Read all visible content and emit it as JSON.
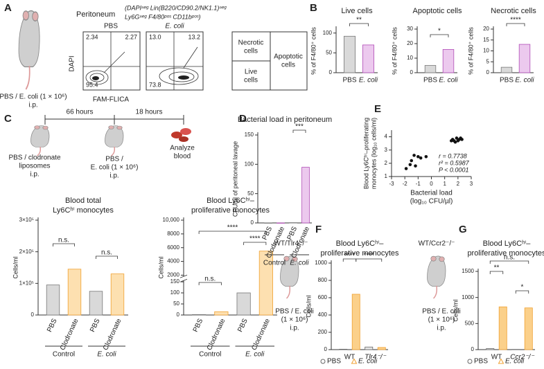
{
  "panel_labels": [
    "A",
    "B",
    "C",
    "D",
    "E",
    "F",
    "G"
  ],
  "panel_a": {
    "treatment": "PBS / E. coli (1 × 10⁶)",
    "route": "i.p.",
    "tissue": "Peritoneum",
    "gating": [
      "(DAPIⁿᵉᵍ Lin(B220/CD90.2/NK1.1)ⁿᵉᵍ",
      "Ly6Gⁿᵉᵍ F4/80ᵖᵒˢ CD11bᵖᵒˢ)"
    ],
    "plots": [
      {
        "label": "PBS",
        "quadrants": [
          "2.34",
          "2.27",
          "95.4"
        ]
      },
      {
        "label": "E. coli",
        "quadrants": [
          "13.0",
          "13.2",
          "73.8"
        ]
      }
    ],
    "y_axis": "DAPI",
    "x_axis": "FAM-FLICA",
    "key": {
      "necrotic": [
        "Necrotic",
        "cells"
      ],
      "live": [
        "Live",
        "cells"
      ],
      "apoptotic": [
        "Apoptotic",
        "cells"
      ]
    }
  },
  "panel_c_protocol": {
    "intervals": [
      "66 hours",
      "18 hours"
    ],
    "step1": [
      "PBS / clodronate",
      "liposomes",
      "i.p."
    ],
    "step2": [
      "PBS /",
      "E. coli (1 × 10⁶)",
      "i.p."
    ],
    "step3": [
      "Analyze",
      "blood"
    ]
  },
  "panel_f_model": {
    "mice": "WT/Tlr4⁻/⁻",
    "treatment": [
      "PBS / E. coli",
      "(1 × 10⁶)",
      "i.p."
    ]
  },
  "panel_g_model": {
    "mice": "WT/Ccr2⁻/⁻",
    "treatment": [
      "PBS / E. coli",
      "(1 × 10⁶)",
      "i.p."
    ]
  },
  "chart_data": [
    {
      "type": "bar",
      "title": "Live cells",
      "ylabel": "% of F4/80⁺ cells",
      "categories": [
        "PBS",
        "E. coli"
      ],
      "values": [
        92,
        70
      ],
      "colors": [
        "#d9d9d9",
        "#ecc9ee"
      ],
      "ylim": [
        0,
        110
      ],
      "yticks": [
        0,
        50,
        100
      ],
      "annotations": [
        "**"
      ]
    },
    {
      "type": "bar",
      "title": "Apoptotic cells",
      "ylabel": "% of F4/80⁺ cells",
      "categories": [
        "PBS",
        "E. coli"
      ],
      "values": [
        5,
        16
      ],
      "colors": [
        "#d9d9d9",
        "#ecc9ee"
      ],
      "ylim": [
        0,
        30
      ],
      "yticks": [
        0,
        10,
        20,
        30
      ],
      "annotations": [
        "*"
      ]
    },
    {
      "type": "bar",
      "title": "Necrotic cells",
      "ylabel": "% of F4/80⁺ cells",
      "categories": [
        "PBS",
        "E. coli"
      ],
      "values": [
        2.5,
        13
      ],
      "colors": [
        "#d9d9d9",
        "#ecc9ee"
      ],
      "ylim": [
        0,
        20
      ],
      "yticks": [
        0,
        5,
        10,
        15,
        20
      ],
      "annotations": [
        "****"
      ]
    },
    {
      "type": "bar",
      "title": "Blood total",
      "subtitle": "Ly6Cʰⁱ monocytes",
      "ylabel": "Cells/ml",
      "categories": [
        "PBS",
        "Clodronate",
        "PBS",
        "Clodronate"
      ],
      "values": [
        95000,
        145000,
        75000,
        130000
      ],
      "colors": [
        "#d9d9d9",
        "#fde0b0",
        "#d9d9d9",
        "#fde0b0"
      ],
      "groups": [
        "Control",
        "E. coli"
      ],
      "ylim": [
        0,
        300000
      ],
      "yticks": [
        0,
        {
          "value": 100000,
          "label": "1×10⁵"
        },
        {
          "value": 200000,
          "label": "2×10⁵"
        },
        {
          "value": 300000,
          "label": "3×10⁵"
        }
      ],
      "annotations": [
        "n.s.",
        "n.s."
      ]
    },
    {
      "type": "bar",
      "title": "Blood Ly6Cʰⁱ–",
      "subtitle": "proliferative monocytes",
      "ylabel": "Cells/ml",
      "categories": [
        "PBS",
        "Clodronate",
        "PBS",
        "Clodronate"
      ],
      "values": [
        2,
        15,
        100,
        5500
      ],
      "colors": [
        "#d9d9d9",
        "#fde0b0",
        "#d9d9d9",
        "#fde0b0"
      ],
      "groups": [
        "Control",
        "E. coli"
      ],
      "ylim": [
        0,
        10000
      ],
      "ybreak": [
        150,
        2000
      ],
      "yticks": [
        0,
        50,
        100,
        150,
        2000,
        4000,
        6000,
        8000,
        {
          "value": 10000,
          "label": "10,000"
        }
      ],
      "annotations": [
        "****",
        "****",
        "n.s."
      ]
    },
    {
      "type": "bar",
      "title": "Bacterial load in peritoneum",
      "ylabel": "CFU/µl of peritoneal lavage",
      "categories": [
        "PBS",
        "Clodronate",
        "PBS",
        "Clodronate"
      ],
      "values": [
        0,
        0,
        0.5,
        95
      ],
      "colors": [
        "#d9d9d9",
        "#ecc9ee",
        "#d9d9d9",
        "#ecc9ee"
      ],
      "groups": [
        "Control",
        "E. coli"
      ],
      "ylim": [
        0,
        150
      ],
      "yticks": [
        0,
        50,
        100,
        150
      ],
      "annotations": [
        "***"
      ]
    },
    {
      "type": "scatter",
      "ylabel": [
        "Blood Ly6Cʰⁱ–proliferating",
        "monocytes (log₁₀ cells/ml)"
      ],
      "xlabel": [
        "Bacterial load",
        "(log₁₀ CFU/µl)"
      ],
      "x": [
        -1.9,
        -1.6,
        -1.5,
        -1.2,
        -1.3,
        -1.0,
        -0.8,
        -0.4,
        1.5,
        1.6,
        1.7,
        1.8,
        1.9,
        2.0,
        2.1,
        2.2,
        2.3
      ],
      "y": [
        1.6,
        1.9,
        2.2,
        1.8,
        2.6,
        2.5,
        2.4,
        2.5,
        3.7,
        3.8,
        3.7,
        3.6,
        3.9,
        3.7,
        3.8,
        3.9,
        3.8
      ],
      "color": "#111",
      "xlim": [
        -3,
        3
      ],
      "xticks": [
        -3,
        -2,
        -1,
        0,
        1,
        2,
        3
      ],
      "ylim": [
        1,
        4.5
      ],
      "yticks": [
        1,
        2,
        3,
        4
      ],
      "annotations": [
        "r = 0.7738",
        "r² = 0.5987",
        "P < 0.0001"
      ]
    },
    {
      "type": "bar",
      "title": "Blood Ly6Cʰⁱ–",
      "subtitle": "proliferative monocytes",
      "ylabel": "Cells/ml",
      "categories": [
        "WT",
        "Tlr4⁻/⁻"
      ],
      "series": [
        {
          "name": "PBS",
          "color": "#e6e6e6",
          "values": [
            5,
            30
          ]
        },
        {
          "name": "E. coli",
          "color": "#fbd08a",
          "values": [
            640,
            25
          ]
        }
      ],
      "ylim": [
        0,
        1000
      ],
      "yticks": [
        0,
        200,
        400,
        600,
        800,
        1000
      ],
      "annotations": [
        "****",
        "****"
      ]
    },
    {
      "type": "bar",
      "title": "Blood Ly6Cʰⁱ–",
      "subtitle": "proliferative monocytes",
      "ylabel": "Cells/ml",
      "categories": [
        "WT",
        "Ccr2⁻/⁻"
      ],
      "series": [
        {
          "name": "PBS",
          "color": "#e6e6e6",
          "values": [
            20,
            5
          ]
        },
        {
          "name": "E. coli",
          "color": "#fbd08a",
          "values": [
            820,
            800
          ]
        }
      ],
      "ylim": [
        0,
        1500
      ],
      "yticks": [
        0,
        500,
        1000,
        1500
      ],
      "annotations": [
        "n.s.",
        "**",
        "*"
      ]
    }
  ]
}
